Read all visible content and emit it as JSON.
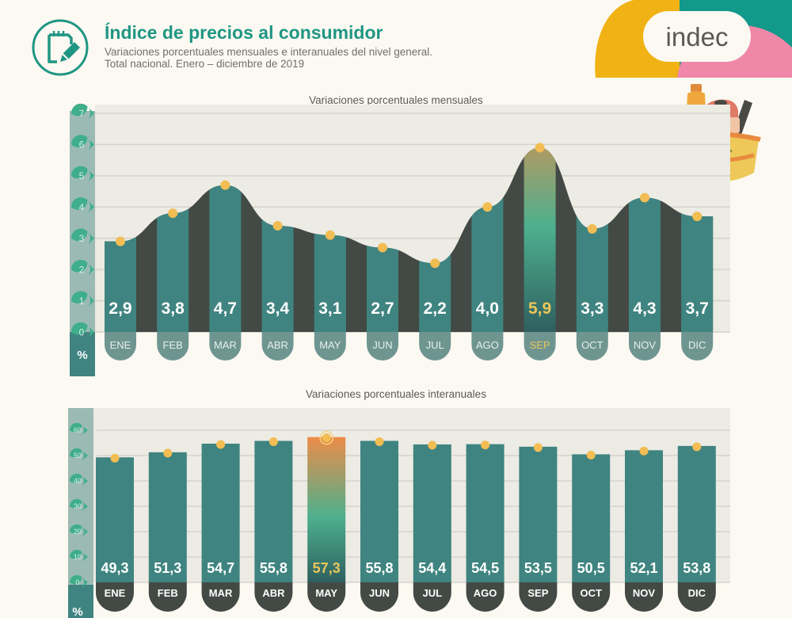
{
  "header": {
    "title": "Índice de precios al consumidor",
    "subtitle_line1": "Variaciones porcentuales mensuales e interanuales del nivel general.",
    "subtitle_line2": "Total nacional. Enero – diciembre de 2019",
    "logo_text": "indec",
    "icon": "notebook-pencil-icon",
    "illustration": "shopping-basket-illustration"
  },
  "colors": {
    "teal": "#3f8480",
    "dark": "#434a45",
    "accent_green": "#3fae8a",
    "dot": "#f2bd53",
    "highlight_text": "#eac65a",
    "orange": "#ec8c48",
    "pink": "#ef87a8",
    "yellow": "#f0b214",
    "logo_teal": "#12998a",
    "plot_bg": "#ecebe4",
    "axis_bg": "#9bbab4",
    "month_pill_top": "#6f9591",
    "month_pill_bottom": "#434a45"
  },
  "chart_data": [
    {
      "type": "bar",
      "title": "Variaciones porcentuales mensuales",
      "xlabel": "",
      "ylabel": "%",
      "ylim": [
        0,
        7
      ],
      "yticks": [
        "0",
        "1",
        "2",
        "3",
        "4",
        "5",
        "6",
        "7"
      ],
      "grid": true,
      "categories": [
        "ENE",
        "FEB",
        "MAR",
        "ABR",
        "MAY",
        "JUN",
        "JUL",
        "AGO",
        "SEP",
        "OCT",
        "NOV",
        "DIC"
      ],
      "values": [
        2.9,
        3.8,
        4.7,
        3.4,
        3.1,
        2.7,
        2.2,
        4.0,
        5.9,
        3.3,
        4.3,
        3.7
      ],
      "labels": [
        "2,9",
        "3,8",
        "4,7",
        "3,4",
        "3,1",
        "2,7",
        "2,2",
        "4,0",
        "5,9",
        "3,3",
        "4,3",
        "3,7"
      ],
      "highlight": "SEP",
      "overlay": "smoothed curve area through values"
    },
    {
      "type": "bar",
      "title": "Variaciones porcentuales interanuales",
      "xlabel": "",
      "ylabel": "%",
      "ylim": [
        0,
        60
      ],
      "yticks": [
        "0",
        "10",
        "20",
        "30",
        "40",
        "50",
        "60"
      ],
      "grid": true,
      "categories": [
        "ENE",
        "FEB",
        "MAR",
        "ABR",
        "MAY",
        "JUN",
        "JUL",
        "AGO",
        "SEP",
        "OCT",
        "NOV",
        "DIC"
      ],
      "values": [
        49.3,
        51.3,
        54.7,
        55.8,
        57.3,
        55.8,
        54.4,
        54.5,
        53.5,
        50.5,
        52.1,
        53.8
      ],
      "labels": [
        "49,3",
        "51,3",
        "54,7",
        "55,8",
        "57,3",
        "55,8",
        "54,4",
        "54,5",
        "53,5",
        "50,5",
        "52,1",
        "53,8"
      ],
      "highlight": "MAY"
    }
  ]
}
